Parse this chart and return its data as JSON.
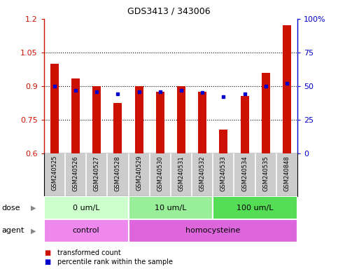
{
  "title": "GDS3413 / 343006",
  "samples": [
    "GSM240525",
    "GSM240526",
    "GSM240527",
    "GSM240528",
    "GSM240529",
    "GSM240530",
    "GSM240531",
    "GSM240532",
    "GSM240533",
    "GSM240534",
    "GSM240535",
    "GSM240848"
  ],
  "red_values": [
    1.0,
    0.935,
    0.9,
    0.825,
    0.9,
    0.875,
    0.9,
    0.875,
    0.705,
    0.855,
    0.96,
    1.17
  ],
  "blue_values": [
    50,
    47,
    46,
    44,
    46,
    46,
    47,
    45,
    42,
    44,
    50,
    52
  ],
  "ylim_left": [
    0.6,
    1.2
  ],
  "ylim_right": [
    0,
    100
  ],
  "yticks_left": [
    0.6,
    0.75,
    0.9,
    1.05,
    1.2
  ],
  "yticks_right": [
    0,
    25,
    50,
    75,
    100
  ],
  "ytick_labels_left": [
    "0.6",
    "0.75",
    "0.9",
    "1.05",
    "1.2"
  ],
  "ytick_labels_right": [
    "0",
    "25",
    "50",
    "75",
    "100%"
  ],
  "hlines": [
    0.75,
    0.9,
    1.05
  ],
  "dose_groups": [
    {
      "label": "0 um/L",
      "start": 0,
      "end": 4,
      "color": "#ccffcc"
    },
    {
      "label": "10 um/L",
      "start": 4,
      "end": 8,
      "color": "#99ee99"
    },
    {
      "label": "100 um/L",
      "start": 8,
      "end": 12,
      "color": "#55dd55"
    }
  ],
  "agent_groups": [
    {
      "label": "control",
      "start": 0,
      "end": 4,
      "color": "#ee88ee"
    },
    {
      "label": "homocysteine",
      "start": 4,
      "end": 12,
      "color": "#dd66dd"
    }
  ],
  "red_color": "#cc1100",
  "blue_color": "#0000cc",
  "bar_width": 0.4,
  "background_color": "#ffffff",
  "label_bg_color": "#cccccc",
  "legend_red": "transformed count",
  "legend_blue": "percentile rank within the sample",
  "dose_label": "dose",
  "agent_label": "agent"
}
